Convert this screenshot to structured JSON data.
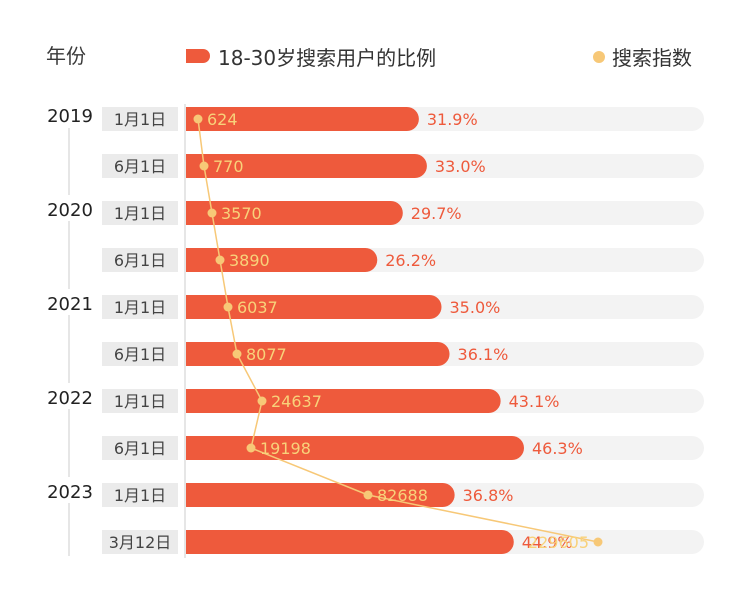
{
  "header": {
    "year_column_label": "年份"
  },
  "legend": {
    "bar_label": "18-30岁搜索用户的比例",
    "dot_label": "搜索指数"
  },
  "colors": {
    "bar": "#ee5a3c",
    "track": "#f3f3f3",
    "dot": "#f7c877",
    "date_bg": "#ebebeb",
    "axis": "#cccccc",
    "pct_text": "#ee5a3c",
    "index_text": "#f8d27a"
  },
  "chart_data": {
    "type": "bar",
    "categories": [
      "1月1日",
      "6月1日",
      "1月1日",
      "6月1日",
      "1月1日",
      "6月1日",
      "1月1日",
      "6月1日",
      "1月1日",
      "3月12日"
    ],
    "years": [
      {
        "label": "2019",
        "row": 0
      },
      {
        "label": "2020",
        "row": 2
      },
      {
        "label": "2021",
        "row": 4
      },
      {
        "label": "2022",
        "row": 6
      },
      {
        "label": "2023",
        "row": 8
      }
    ],
    "series": [
      {
        "name": "18-30岁搜索用户的比例",
        "values": [
          31.9,
          33.0,
          29.7,
          26.2,
          35.0,
          36.1,
          43.1,
          46.3,
          36.8,
          44.9
        ],
        "labels": [
          "31.9%",
          "33.0%",
          "29.7%",
          "26.2%",
          "35.0%",
          "36.1%",
          "43.1%",
          "46.3%",
          "36.8%",
          "44.9%"
        ]
      },
      {
        "name": "搜索指数",
        "values": [
          624,
          770,
          3570,
          3890,
          6037,
          8077,
          24637,
          19198,
          82688,
          229605
        ],
        "labels": [
          "624",
          "770",
          "3570",
          "3890",
          "6037",
          "8077",
          "24637",
          "19198",
          "82688",
          "229605"
        ]
      }
    ],
    "bar_range": [
      0,
      60
    ]
  }
}
